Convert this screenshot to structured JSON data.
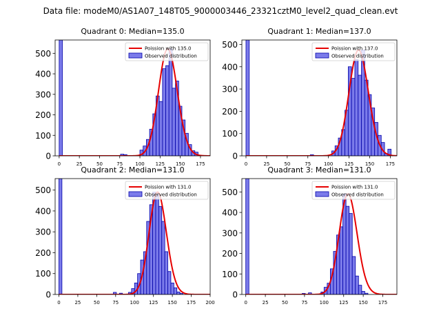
{
  "figure_title": "Data file: modeM0/AS1A07_148T05_9000003446_23321cztM0_level2_quad_clean.evt",
  "colors": {
    "bar_fill": "#7b7bea",
    "bar_edge": "#0000a8",
    "curve": "#e60000"
  },
  "chart_data": [
    {
      "type": "bar",
      "title": "Quadrant 0: Median=135.0",
      "median": 135,
      "xlim": [
        -5,
        187
      ],
      "ylim": [
        0,
        565
      ],
      "xticks": [
        0,
        25,
        50,
        75,
        100,
        125,
        150,
        175
      ],
      "yticks": [
        0,
        100,
        200,
        300,
        400,
        500
      ],
      "legend": [
        "Poission with 135.0",
        "Observed distribution"
      ],
      "legend_position": "top-right",
      "bin_width": 4,
      "bins": [
        {
          "x": 0,
          "count": 565
        },
        {
          "x": 76,
          "count": 8
        },
        {
          "x": 80,
          "count": 6
        },
        {
          "x": 100,
          "count": 28
        },
        {
          "x": 104,
          "count": 48
        },
        {
          "x": 108,
          "count": 80
        },
        {
          "x": 112,
          "count": 130
        },
        {
          "x": 116,
          "count": 205
        },
        {
          "x": 120,
          "count": 292
        },
        {
          "x": 124,
          "count": 265
        },
        {
          "x": 128,
          "count": 425
        },
        {
          "x": 132,
          "count": 440
        },
        {
          "x": 136,
          "count": 522
        },
        {
          "x": 140,
          "count": 330
        },
        {
          "x": 144,
          "count": 365
        },
        {
          "x": 148,
          "count": 242
        },
        {
          "x": 152,
          "count": 175
        },
        {
          "x": 156,
          "count": 110
        },
        {
          "x": 160,
          "count": 55
        },
        {
          "x": 164,
          "count": 25
        },
        {
          "x": 168,
          "count": 18
        },
        {
          "x": 172,
          "count": 3
        }
      ]
    },
    {
      "type": "bar",
      "title": "Quadrant 1: Median=137.0",
      "median": 137,
      "xlim": [
        -5,
        183
      ],
      "ylim": [
        0,
        520
      ],
      "xticks": [
        0,
        25,
        50,
        75,
        100,
        125,
        150,
        175
      ],
      "yticks": [
        0,
        100,
        200,
        300,
        400,
        500
      ],
      "legend": [
        "Poission with 137.0",
        "Observed distribution"
      ],
      "legend_position": "top-right",
      "bin_width": 4,
      "bins": [
        {
          "x": 0,
          "count": 520
        },
        {
          "x": 78,
          "count": 5
        },
        {
          "x": 104,
          "count": 22
        },
        {
          "x": 108,
          "count": 45
        },
        {
          "x": 112,
          "count": 80
        },
        {
          "x": 116,
          "count": 118
        },
        {
          "x": 120,
          "count": 205
        },
        {
          "x": 124,
          "count": 400
        },
        {
          "x": 128,
          "count": 348
        },
        {
          "x": 132,
          "count": 432
        },
        {
          "x": 136,
          "count": 362
        },
        {
          "x": 140,
          "count": 475
        },
        {
          "x": 144,
          "count": 340
        },
        {
          "x": 148,
          "count": 275
        },
        {
          "x": 152,
          "count": 215
        },
        {
          "x": 156,
          "count": 150
        },
        {
          "x": 160,
          "count": 92
        },
        {
          "x": 164,
          "count": 60
        },
        {
          "x": 168,
          "count": 10
        },
        {
          "x": 172,
          "count": 30
        }
      ]
    },
    {
      "type": "bar",
      "title": "Quadrant 2: Median=131.0",
      "median": 131,
      "xlim": [
        -5,
        200
      ],
      "ylim": [
        0,
        555
      ],
      "xticks": [
        0,
        25,
        50,
        75,
        100,
        125,
        150,
        175,
        200
      ],
      "yticks": [
        0,
        100,
        200,
        300,
        400,
        500
      ],
      "legend": [
        "Poission with 131.0",
        "Observed distribution"
      ],
      "legend_position": "top-right",
      "bin_width": 4,
      "bins": [
        {
          "x": 0,
          "count": 555
        },
        {
          "x": 72,
          "count": 10
        },
        {
          "x": 80,
          "count": 6
        },
        {
          "x": 92,
          "count": 10
        },
        {
          "x": 96,
          "count": 28
        },
        {
          "x": 100,
          "count": 55
        },
        {
          "x": 104,
          "count": 100
        },
        {
          "x": 108,
          "count": 165
        },
        {
          "x": 112,
          "count": 205
        },
        {
          "x": 116,
          "count": 350
        },
        {
          "x": 120,
          "count": 430
        },
        {
          "x": 124,
          "count": 490
        },
        {
          "x": 128,
          "count": 480
        },
        {
          "x": 132,
          "count": 422
        },
        {
          "x": 136,
          "count": 350
        },
        {
          "x": 140,
          "count": 205
        },
        {
          "x": 144,
          "count": 110
        },
        {
          "x": 148,
          "count": 55
        },
        {
          "x": 152,
          "count": 32
        },
        {
          "x": 156,
          "count": 12
        },
        {
          "x": 160,
          "count": 5
        }
      ]
    },
    {
      "type": "bar",
      "title": "Quadrant 3: Median=131.0",
      "median": 131,
      "xlim": [
        -5,
        193
      ],
      "ylim": [
        0,
        565
      ],
      "xticks": [
        0,
        25,
        50,
        75,
        100,
        125,
        150,
        175
      ],
      "yticks": [
        0,
        100,
        200,
        300,
        400,
        500
      ],
      "legend": [
        "Poission with 131.0",
        "Observed distribution"
      ],
      "legend_position": "top-right",
      "bin_width": 4,
      "bins": [
        {
          "x": 0,
          "count": 565
        },
        {
          "x": 72,
          "count": 5
        },
        {
          "x": 80,
          "count": 8
        },
        {
          "x": 96,
          "count": 12
        },
        {
          "x": 100,
          "count": 35
        },
        {
          "x": 104,
          "count": 55
        },
        {
          "x": 108,
          "count": 125
        },
        {
          "x": 112,
          "count": 210
        },
        {
          "x": 116,
          "count": 290
        },
        {
          "x": 120,
          "count": 330
        },
        {
          "x": 124,
          "count": 490
        },
        {
          "x": 128,
          "count": 430
        },
        {
          "x": 132,
          "count": 395
        },
        {
          "x": 136,
          "count": 185
        },
        {
          "x": 140,
          "count": 90
        },
        {
          "x": 144,
          "count": 45
        },
        {
          "x": 148,
          "count": 15
        },
        {
          "x": 152,
          "count": 6
        }
      ]
    }
  ]
}
